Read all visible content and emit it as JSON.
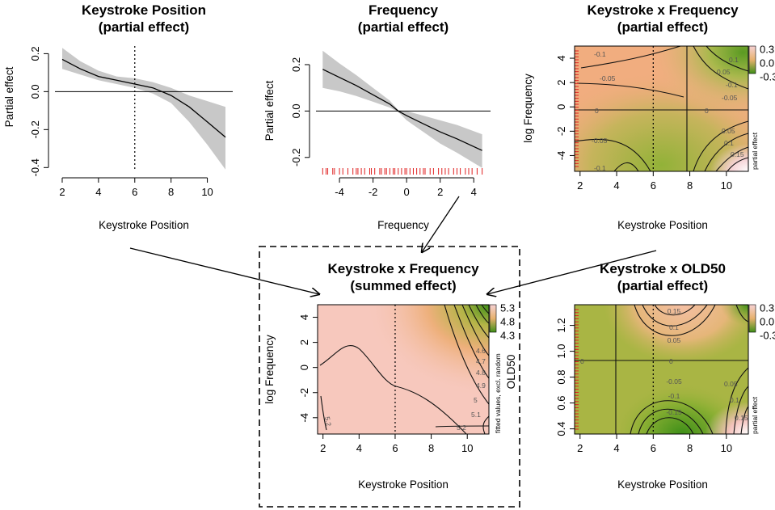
{
  "chart_data": [
    {
      "id": "p1",
      "type": "line",
      "title": [
        "Keystroke Position",
        "(partial effect)"
      ],
      "xlabel": "Keystroke Position",
      "ylabel": "Partial effect",
      "xticks": [
        "2",
        "4",
        "6",
        "8",
        "10"
      ],
      "yticks": [
        "-0.4",
        "-0.2",
        "0.0",
        "0.2"
      ],
      "xlim": [
        1.6,
        11.4
      ],
      "ylim": [
        -0.42,
        0.24
      ],
      "vline": 6,
      "series": [
        {
          "name": "partial effect",
          "x": [
            2,
            3,
            4,
            5,
            6,
            7,
            8,
            9,
            10,
            11
          ],
          "y": [
            0.17,
            0.12,
            0.08,
            0.06,
            0.04,
            0.02,
            -0.02,
            -0.08,
            -0.16,
            -0.24
          ]
        }
      ],
      "band": {
        "lower": [
          0.12,
          0.09,
          0.06,
          0.04,
          0.02,
          -0.01,
          -0.06,
          -0.16,
          -0.28,
          -0.41
        ],
        "upper": [
          0.23,
          0.16,
          0.11,
          0.08,
          0.07,
          0.05,
          0.02,
          -0.02,
          -0.05,
          -0.08
        ]
      }
    },
    {
      "id": "p2",
      "type": "line",
      "title": [
        "Frequency",
        "(partial effect)"
      ],
      "xlabel": "Frequency",
      "ylabel": "Partial effect",
      "xticks": [
        "-4",
        "-2",
        "0",
        "2",
        "4"
      ],
      "yticks": [
        "-0.2",
        "0.0",
        "0.2"
      ],
      "xlim": [
        -5.4,
        5.0
      ],
      "ylim": [
        -0.26,
        0.28
      ],
      "series": [
        {
          "name": "partial effect",
          "x": [
            -5,
            -4,
            -3,
            -2,
            -1,
            -0.5,
            0,
            1,
            2,
            3,
            4.5
          ],
          "y": [
            0.18,
            0.145,
            0.11,
            0.07,
            0.03,
            0.0,
            -0.02,
            -0.055,
            -0.09,
            -0.12,
            -0.17
          ]
        }
      ],
      "band": {
        "lower": [
          0.1,
          0.085,
          0.065,
          0.04,
          0.015,
          -0.004,
          -0.04,
          -0.09,
          -0.14,
          -0.18,
          -0.245
        ],
        "upper": [
          0.26,
          0.205,
          0.155,
          0.1,
          0.045,
          0.004,
          0.0,
          -0.02,
          -0.04,
          -0.06,
          -0.1
        ]
      },
      "rug": [
        -5.0,
        -4.8,
        -4.7,
        -4.4,
        -4.3,
        -4.0,
        -3.8,
        -3.5,
        -3.2,
        -3.0,
        -2.9,
        -2.7,
        -2.5,
        -2.2,
        -2.1,
        -1.9,
        -1.6,
        -1.5,
        -1.3,
        -1.2,
        -1.0,
        -0.8,
        -0.7,
        -0.5,
        -0.3,
        -0.1,
        0.0,
        0.2,
        0.4,
        0.6,
        0.8,
        1.0,
        1.1,
        1.4,
        1.6,
        1.9,
        2.1,
        2.3,
        2.5,
        2.8,
        3.0,
        3.2,
        3.5,
        3.7,
        3.9,
        4.2,
        4.5
      ]
    },
    {
      "id": "p3",
      "type": "heatmap",
      "title": [
        "Keystroke x Frequency",
        "(partial effect)"
      ],
      "xlabel": "Keystroke Position",
      "ylabel": "log Frequency",
      "side_label": "partial effect",
      "xticks": [
        "2",
        "4",
        "6",
        "8",
        "10"
      ],
      "yticks": [
        "-4",
        "-2",
        "0",
        "2",
        "4"
      ],
      "xlim": [
        1.7,
        11.2
      ],
      "ylim": [
        -5.3,
        5.0
      ],
      "vline": 6,
      "legend": [
        "0.3",
        "0.0",
        "-0.3"
      ],
      "contour_labels": [
        "-0.1",
        "-0.05",
        "0",
        "-0.05",
        "-0.1",
        "0.1",
        "0.05",
        "-0.1",
        "-0.05",
        "0",
        "0.05",
        "0.1",
        "0.15"
      ]
    },
    {
      "id": "p4",
      "type": "heatmap",
      "title": [
        "Keystroke x Frequency",
        "(summed effect)"
      ],
      "xlabel": "Keystroke Position",
      "ylabel": "log Frequency",
      "side_label": "fitted values, excl. random",
      "right_label": "OLD50",
      "xticks": [
        "2",
        "4",
        "6",
        "8",
        "10"
      ],
      "yticks": [
        "-4",
        "-2",
        "0",
        "2",
        "4"
      ],
      "xlim": [
        1.7,
        11.2
      ],
      "ylim": [
        -5.3,
        5.0
      ],
      "vline": 6,
      "legend": [
        "5.3",
        "4.8",
        "4.3"
      ],
      "contour_labels": [
        "5.2",
        "5.2",
        "5.1",
        "5",
        "4.9",
        "4.8",
        "4.7",
        "4.6"
      ]
    },
    {
      "id": "p5",
      "type": "heatmap",
      "title": [
        "Keystroke x OLD50",
        "(partial effect)"
      ],
      "xlabel": "Keystroke Position",
      "ylabel": "",
      "side_label": "partial effect",
      "xticks": [
        "2",
        "4",
        "6",
        "8",
        "10"
      ],
      "yticks": [
        "0.4",
        "0.6",
        "0.8",
        "1.0",
        "1.2"
      ],
      "xlim": [
        1.7,
        11.2
      ],
      "ylim": [
        0.36,
        1.36
      ],
      "vline": 6,
      "legend": [
        "0.3",
        "0.0",
        "-0.3"
      ],
      "contour_labels": [
        "0.15",
        "0.1",
        "0.05",
        "0",
        "0",
        "-0.05",
        "-0.1",
        "-0.15",
        "0.05",
        "0.1",
        "0.15"
      ]
    }
  ]
}
